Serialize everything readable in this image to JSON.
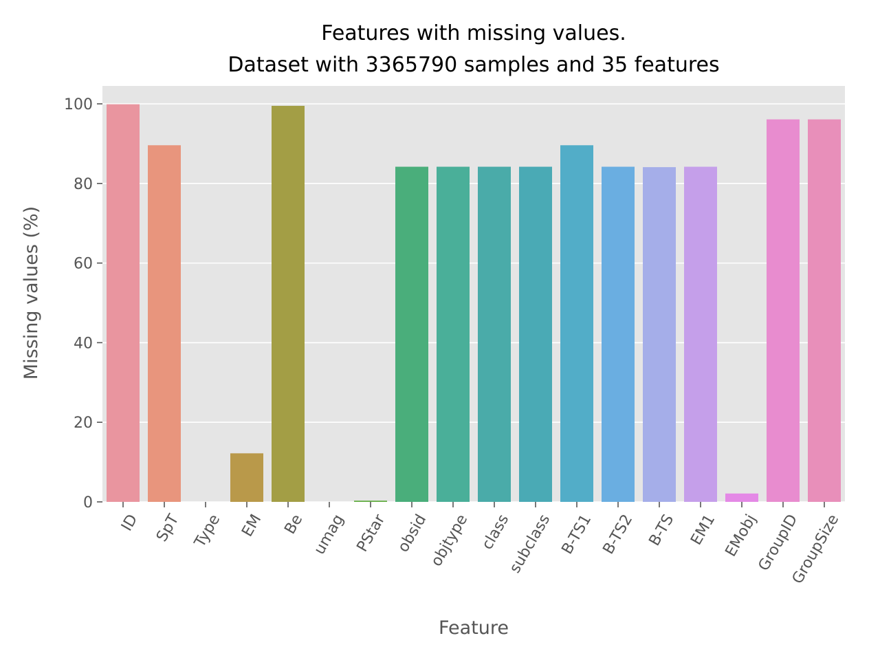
{
  "chart_data": {
    "type": "bar",
    "title": "Features with missing values.",
    "subtitle": "Dataset with 3365790 samples and 35 features",
    "xlabel": "Feature",
    "ylabel": "Missing values (%)",
    "ylim": [
      0,
      104.5
    ],
    "yticks": [
      0,
      20,
      40,
      60,
      80,
      100
    ],
    "grid": true,
    "categories": [
      "ID",
      "SpT",
      "Type",
      "EM",
      "Be",
      "umag",
      "PStar",
      "obsid",
      "objtype",
      "class",
      "subclass",
      "B-TS1",
      "B-TS2",
      "B-TS",
      "EM1",
      "EMobj",
      "GroupID",
      "GroupSize"
    ],
    "values": [
      99.9,
      89.6,
      0.0,
      12.2,
      99.5,
      0.0,
      0.3,
      84.2,
      84.2,
      84.2,
      84.2,
      89.6,
      84.2,
      84.1,
      84.2,
      2.1,
      96.1,
      96.1
    ],
    "colors": [
      "#e9959f",
      "#e8957d",
      "#d0a05a",
      "#b9994a",
      "#a39e45",
      "#8aa43f",
      "#5fab3e",
      "#4aae7b",
      "#4aaf99",
      "#4aaba9",
      "#4aaab5",
      "#52adc8",
      "#6aaee1",
      "#a5aee9",
      "#c59fea",
      "#e489e6",
      "#e88ccf",
      "#e88fba"
    ],
    "style": {
      "background": "#e5e5e5",
      "gridline": "#ffffff",
      "text": "#555555"
    }
  }
}
